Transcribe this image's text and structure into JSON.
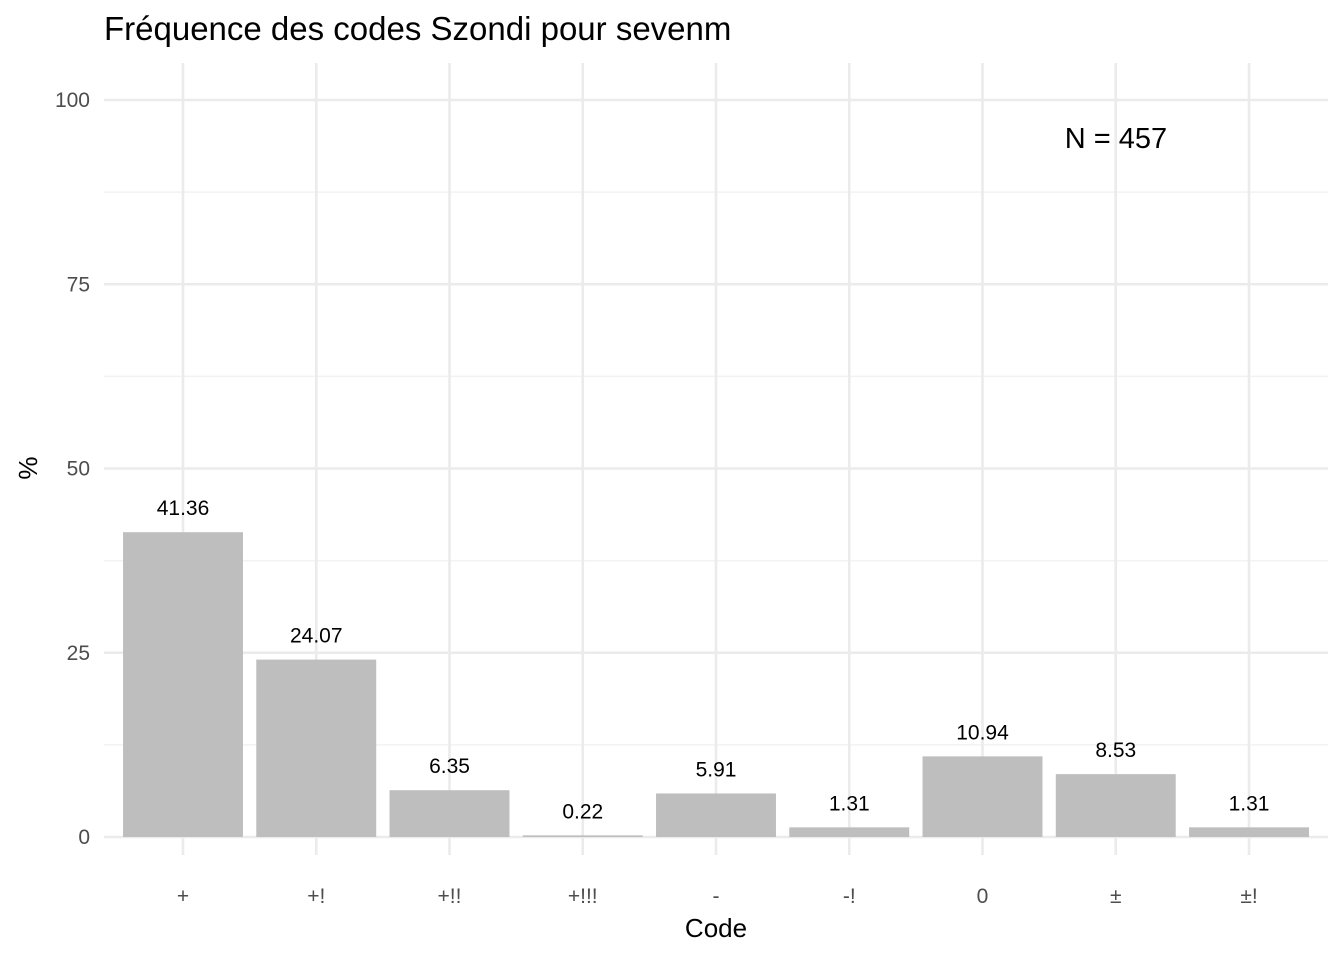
{
  "chart_data": {
    "type": "bar",
    "title": "Fréquence des codes Szondi pour sevenm",
    "xlabel": "Code",
    "ylabel": "%",
    "categories": [
      "+",
      "+!",
      "+!!",
      "+!!!",
      "-",
      "-!",
      "0",
      "±",
      "±!"
    ],
    "values": [
      41.36,
      24.07,
      6.35,
      0.22,
      5.91,
      1.31,
      10.94,
      8.53,
      1.31
    ],
    "data_labels": [
      "41.36",
      "24.07",
      "6.35",
      "0.22",
      "5.91",
      "1.31",
      "10.94",
      "8.53",
      "1.31"
    ],
    "ylim": [
      0,
      100
    ],
    "yticks": [
      0,
      25,
      50,
      75,
      100
    ],
    "ytick_labels": [
      "0",
      "25",
      "50",
      "75",
      "100"
    ],
    "annotation": "N = 457",
    "grid": true,
    "legend": "none",
    "colors": {
      "bar": "#bebebe",
      "grid_major": "#ebebeb",
      "grid_minor": "#f2f2f2",
      "text": "#000000",
      "tick_text": "#4d4d4d"
    }
  }
}
